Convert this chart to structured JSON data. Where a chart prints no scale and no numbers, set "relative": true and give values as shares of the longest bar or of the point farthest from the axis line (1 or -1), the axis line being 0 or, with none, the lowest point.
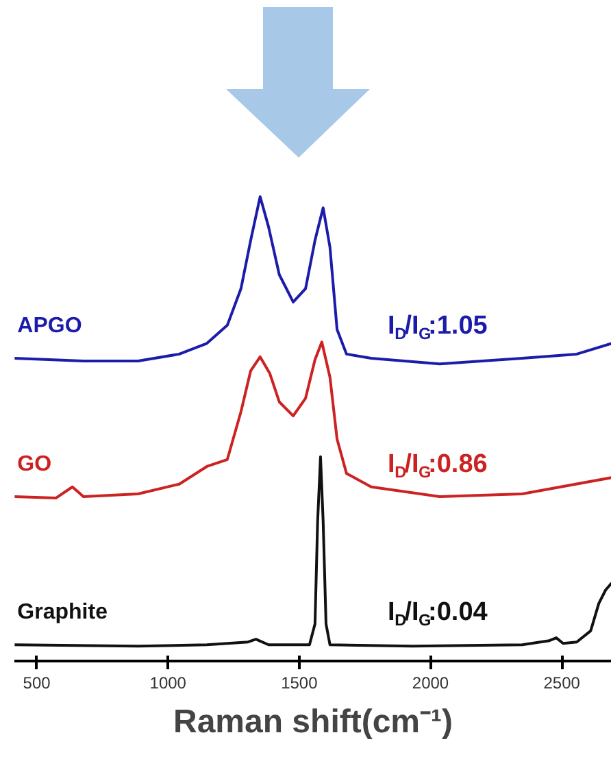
{
  "chart_data": {
    "type": "line",
    "relative": true,
    "xlabel": "Raman shift(cm⁻¹)",
    "xlim": [
      415,
      2690
    ],
    "xticks": [
      500,
      1000,
      1500,
      2000,
      2500
    ],
    "grid": false,
    "marker": "none",
    "line_style": "solid",
    "annotations": [
      "I$_{D}$/I$_{G}$:1.05",
      "I$_{D}$/I$_{G}$:0.86",
      "I$_{D}$/I$_{G}$:0.04"
    ],
    "series": [
      {
        "name": "APGO",
        "color": "#1c1caa",
        "x": [
          416,
          678,
          886,
          1043,
          1148,
          1226,
          1278,
          1315,
          1351,
          1383,
          1424,
          1477,
          1524,
          1560,
          1591,
          1617,
          1644,
          1680,
          1774,
          2035,
          2349,
          2557,
          2690
        ],
        "values": [
          0.652,
          0.646,
          0.646,
          0.661,
          0.684,
          0.723,
          0.802,
          0.906,
          1.0,
          0.935,
          0.832,
          0.773,
          0.802,
          0.906,
          0.976,
          0.891,
          0.714,
          0.661,
          0.652,
          0.64,
          0.652,
          0.661,
          0.684
        ]
      },
      {
        "name": "GO",
        "color": "#cc2222",
        "x": [
          416,
          573,
          636,
          678,
          886,
          1043,
          1148,
          1226,
          1278,
          1315,
          1351,
          1388,
          1424,
          1477,
          1524,
          1560,
          1586,
          1617,
          1644,
          1680,
          1774,
          2035,
          2349,
          2690
        ],
        "values": [
          0.354,
          0.351,
          0.375,
          0.354,
          0.36,
          0.381,
          0.419,
          0.434,
          0.537,
          0.625,
          0.655,
          0.619,
          0.558,
          0.528,
          0.566,
          0.649,
          0.687,
          0.611,
          0.478,
          0.404,
          0.375,
          0.354,
          0.36,
          0.395
        ]
      },
      {
        "name": "Graphite",
        "color": "#111111",
        "x": [
          416,
          886,
          1148,
          1305,
          1335,
          1383,
          1539,
          1560,
          1570,
          1581,
          1591,
          1602,
          1617,
          1931,
          2349,
          2453,
          2479,
          2505,
          2557,
          2610,
          2641,
          2667,
          2690
        ],
        "values": [
          0.035,
          0.032,
          0.035,
          0.041,
          0.047,
          0.035,
          0.035,
          0.08,
          0.301,
          0.44,
          0.301,
          0.08,
          0.035,
          0.032,
          0.035,
          0.044,
          0.05,
          0.038,
          0.041,
          0.065,
          0.124,
          0.153,
          0.168
        ]
      }
    ]
  }
}
